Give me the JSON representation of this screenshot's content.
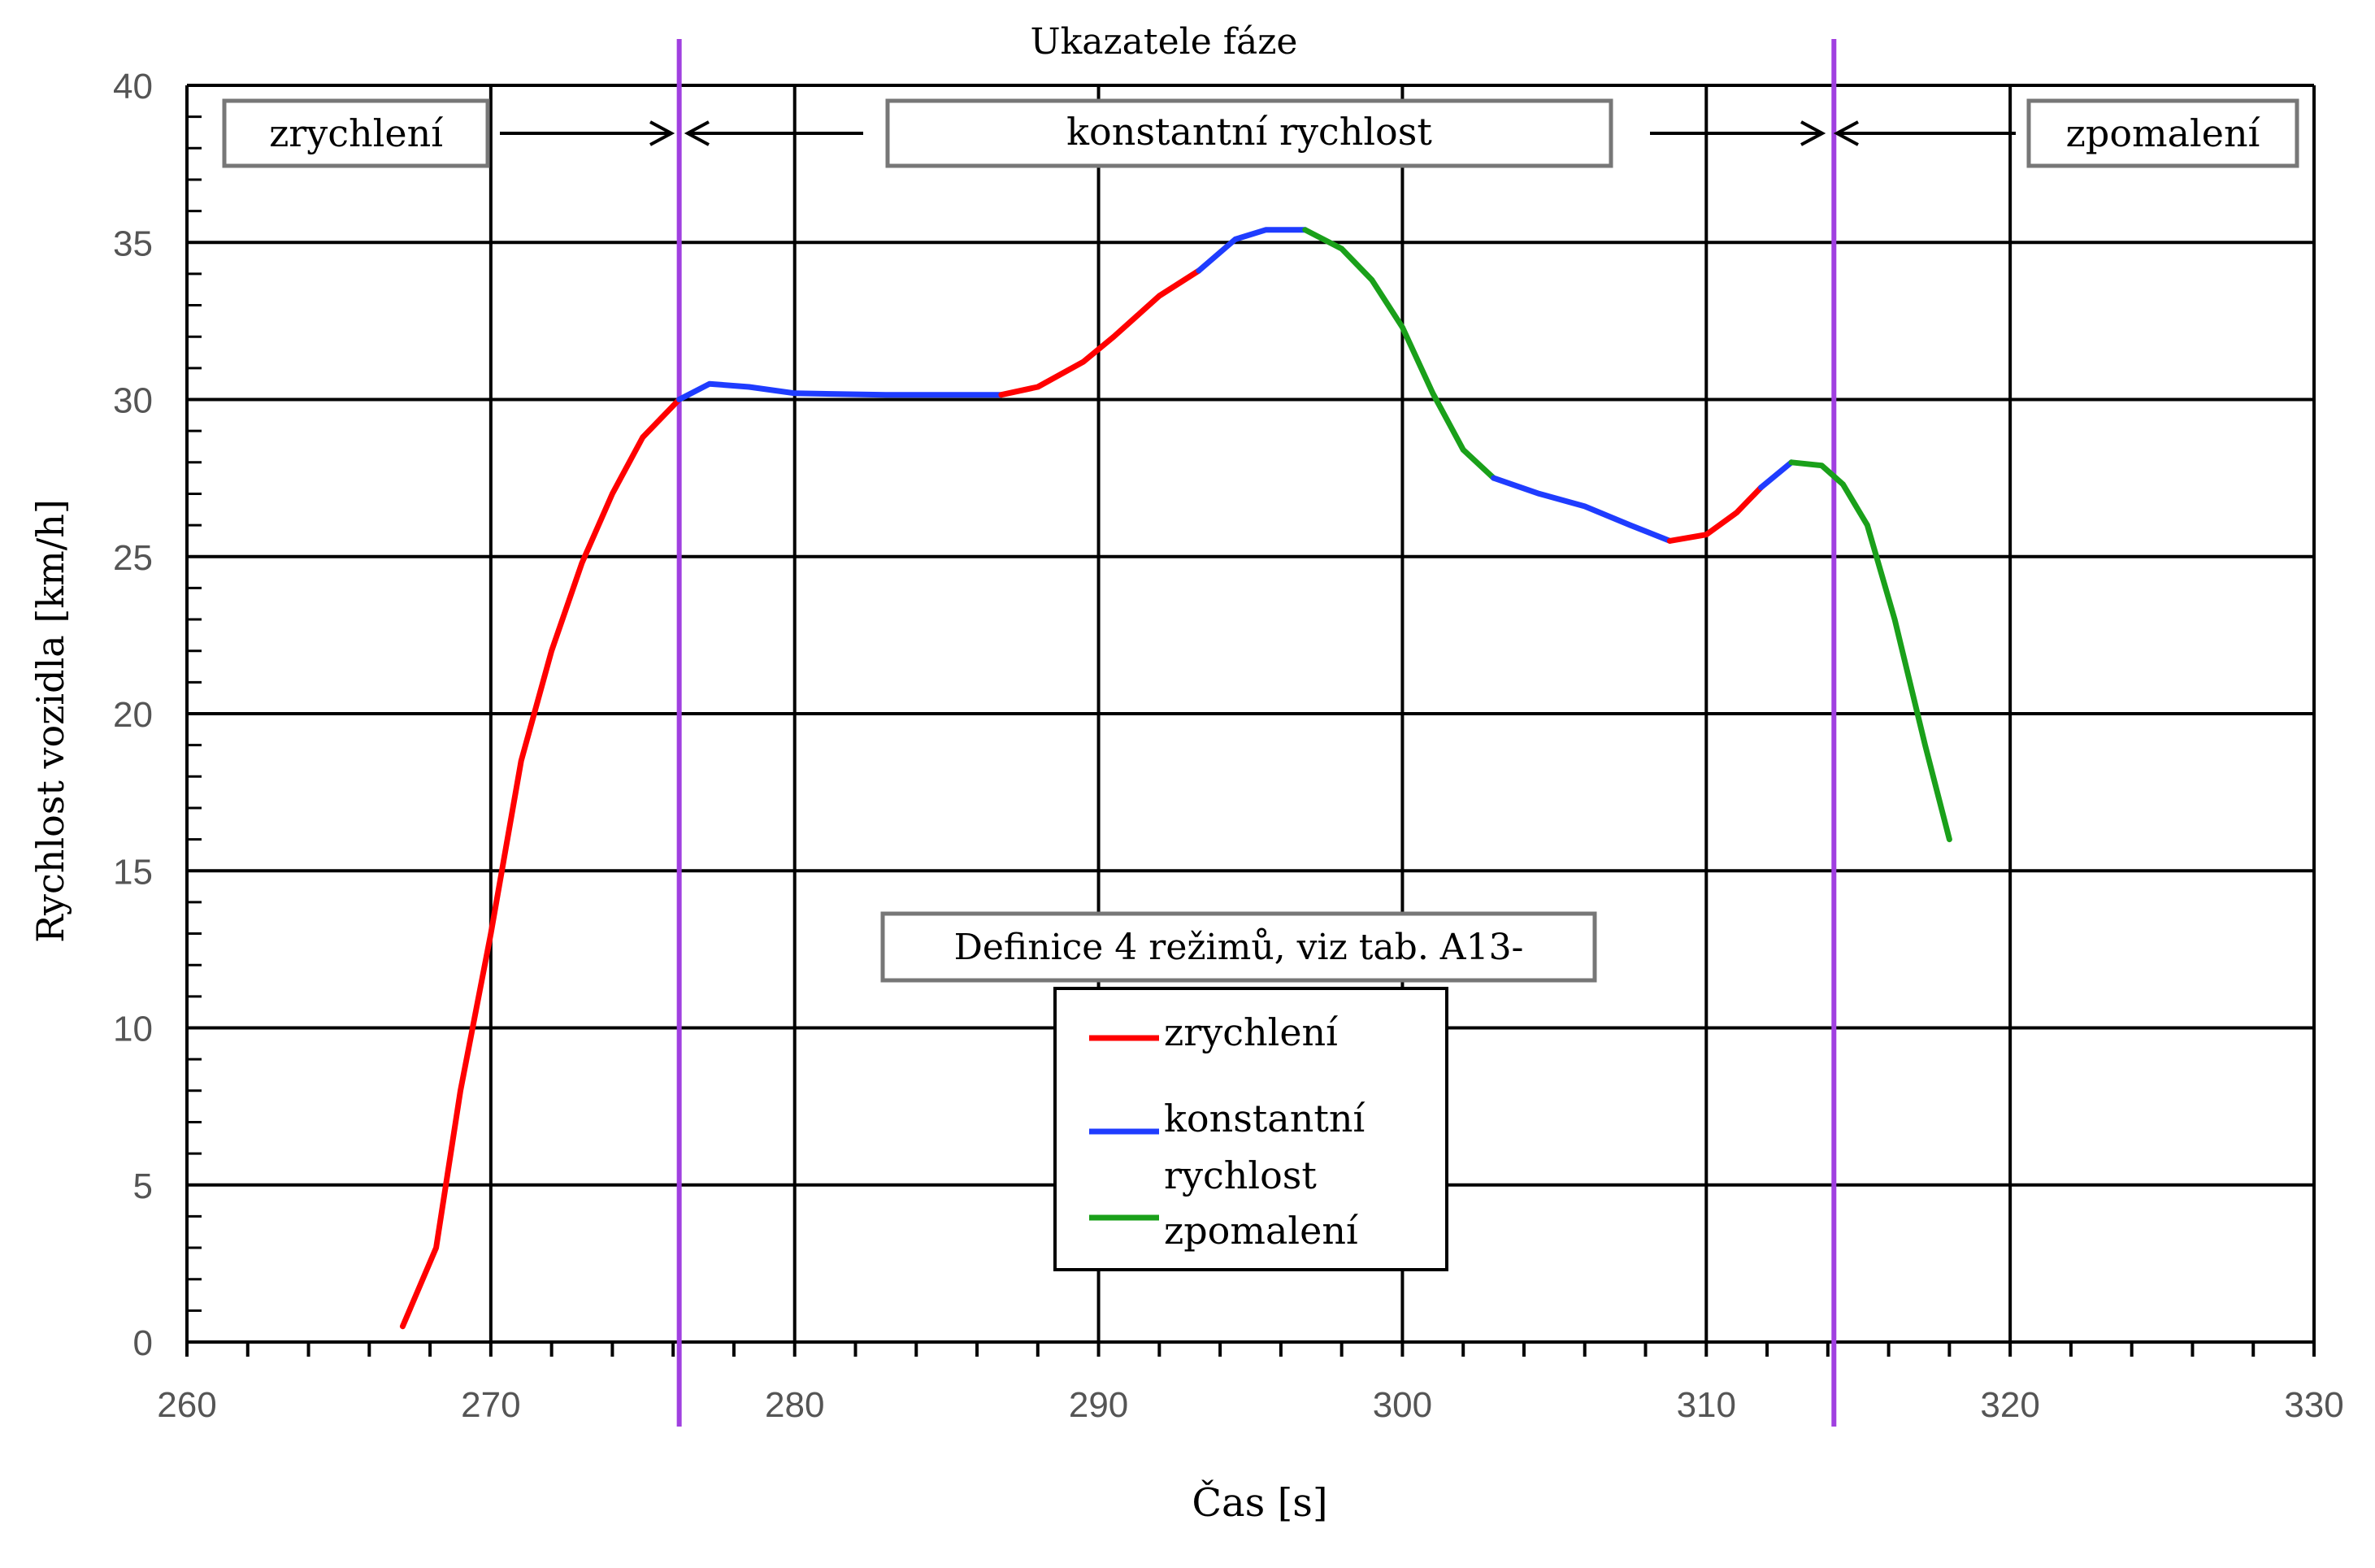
{
  "chart_data": {
    "type": "line",
    "title": "Ukazatele fáze",
    "xlabel": "Čas [s]",
    "ylabel": "Rychlost vozidla [km/h]",
    "xlim": [
      260,
      330
    ],
    "ylim": [
      0,
      40
    ],
    "xticks": [
      260,
      270,
      280,
      290,
      300,
      310,
      320,
      330
    ],
    "yticks": [
      0,
      5,
      10,
      15,
      20,
      25,
      30,
      35,
      40
    ],
    "grid": true,
    "phase_markers": [
      276.2,
      314.2
    ],
    "phase_labels": [
      "zrychlení",
      "konstantní rychlost",
      "zpomalení"
    ],
    "legend_title": "Definice 4 režimů, viz tab. A13-",
    "legend": [
      {
        "name": "zrychlení",
        "color": "#ff0000"
      },
      {
        "name": "konstantní rychlost",
        "color": "#1f3cff"
      },
      {
        "name": "zpomalení",
        "color": "#1aa01a"
      }
    ],
    "colors": {
      "acceleration": "#ff0000",
      "constant": "#1f3cff",
      "deceleration": "#1aa01a",
      "marker": "#a040e0",
      "grid": "#000000"
    },
    "series": [
      {
        "name": "zrychlení",
        "color": "#ff0000",
        "points": [
          [
            267.1,
            0.5
          ],
          [
            268.2,
            3
          ],
          [
            269,
            8
          ],
          [
            270,
            13
          ],
          [
            271,
            18.5
          ],
          [
            272,
            22
          ],
          [
            273,
            24.8
          ],
          [
            274,
            27
          ],
          [
            275,
            28.8
          ],
          [
            276.2,
            30
          ]
        ]
      },
      {
        "name": "konstantní rychlost",
        "color": "#1f3cff",
        "points": [
          [
            276.2,
            30
          ],
          [
            277.2,
            30.5
          ],
          [
            278.5,
            30.4
          ],
          [
            280,
            30.2
          ],
          [
            283,
            30.15
          ],
          [
            286.8,
            30.15
          ]
        ]
      },
      {
        "name": "zrychlení",
        "color": "#ff0000",
        "points": [
          [
            286.8,
            30.15
          ],
          [
            288,
            30.4
          ],
          [
            289.5,
            31.2
          ],
          [
            290.5,
            32
          ],
          [
            292,
            33.3
          ],
          [
            293.3,
            34.1
          ]
        ]
      },
      {
        "name": "konstantní rychlost",
        "color": "#1f3cff",
        "points": [
          [
            293.3,
            34.1
          ],
          [
            294.5,
            35.1
          ],
          [
            295.5,
            35.4
          ],
          [
            296.8,
            35.4
          ]
        ]
      },
      {
        "name": "zpomalení",
        "color": "#1aa01a",
        "points": [
          [
            296.8,
            35.4
          ],
          [
            298,
            34.8
          ],
          [
            299,
            33.8
          ],
          [
            300,
            32.3
          ],
          [
            301,
            30.2
          ],
          [
            302,
            28.4
          ],
          [
            303,
            27.5
          ]
        ]
      },
      {
        "name": "konstantní rychlost",
        "color": "#1f3cff",
        "points": [
          [
            303,
            27.5
          ],
          [
            304.5,
            27
          ],
          [
            306,
            26.6
          ],
          [
            307.5,
            26
          ],
          [
            308.8,
            25.5
          ]
        ]
      },
      {
        "name": "zrychlení",
        "color": "#ff0000",
        "points": [
          [
            308.8,
            25.5
          ],
          [
            310,
            25.7
          ],
          [
            311,
            26.4
          ],
          [
            311.8,
            27.2
          ]
        ]
      },
      {
        "name": "konstantní rychlost",
        "color": "#1f3cff",
        "points": [
          [
            311.8,
            27.2
          ],
          [
            312.8,
            28
          ]
        ]
      },
      {
        "name": "zpomalení",
        "color": "#1aa01a",
        "points": [
          [
            312.8,
            28
          ],
          [
            313.8,
            27.9
          ],
          [
            314.5,
            27.3
          ],
          [
            315.3,
            26
          ],
          [
            316.2,
            23
          ],
          [
            317.2,
            19
          ],
          [
            318,
            16
          ]
        ]
      }
    ]
  }
}
